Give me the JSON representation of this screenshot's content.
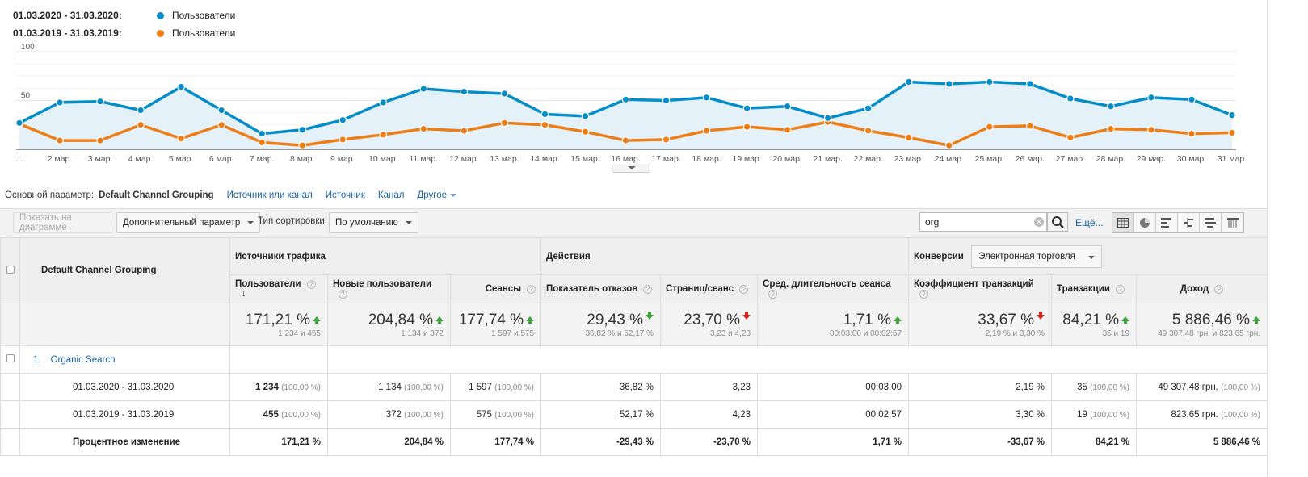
{
  "legend": [
    {
      "dates": "01.03.2020 - 31.03.2020:",
      "metric": "Пользователи",
      "color": "#058dc7"
    },
    {
      "dates": "01.03.2019 - 31.03.2019:",
      "metric": "Пользователи",
      "color": "#ed7e17"
    }
  ],
  "chart_data": {
    "type": "line",
    "x": [
      "...",
      "2 мар.",
      "3 мар.",
      "4 мар.",
      "5 мар.",
      "6 мар.",
      "7 мар.",
      "8 мар.",
      "9 мар.",
      "10 мар.",
      "11 мар.",
      "12 мар.",
      "13 мар.",
      "14 мар.",
      "15 мар.",
      "16 мар.",
      "17 мар.",
      "18 мар.",
      "19 мар.",
      "20 мар.",
      "21 мар.",
      "22 мар.",
      "23 мар.",
      "24 мар.",
      "25 мар.",
      "26 мар.",
      "27 мар.",
      "28 мар.",
      "29 мар.",
      "30 мар.",
      "31 мар."
    ],
    "y_ticks": [
      "100",
      "50"
    ],
    "ylim": [
      0,
      100
    ],
    "series": [
      {
        "name": "Пользователи",
        "color": "#058dc7",
        "values": [
          27,
          48,
          49,
          40,
          64,
          40,
          16,
          20,
          30,
          48,
          62,
          59,
          57,
          36,
          34,
          51,
          50,
          53,
          42,
          44,
          32,
          42,
          69,
          67,
          69,
          67,
          52,
          44,
          53,
          51,
          35
        ]
      },
      {
        "name": "Пользователи",
        "color": "#ed7e17",
        "values": [
          26,
          9,
          9,
          25,
          11,
          25,
          7,
          4,
          10,
          15,
          21,
          19,
          27,
          25,
          18,
          9,
          10,
          19,
          23,
          20,
          28,
          19,
          12,
          4,
          23,
          24,
          12,
          21,
          20,
          16,
          17
        ]
      }
    ]
  },
  "primary_dim": {
    "label": "Основной параметр:",
    "active": "Default Channel Grouping",
    "options": [
      "Источник или канал",
      "Источник",
      "Канал"
    ],
    "other": "Другое"
  },
  "toolbar": {
    "plot_button": "Показать на диаграмме",
    "secondary_dim": "Дополнительный параметр",
    "sort_label": "Тип сортировки:",
    "sort_value": "По умолчанию",
    "search_value": "org",
    "more": "Ещё..."
  },
  "table": {
    "dim_header": "Default Channel Grouping",
    "groups": [
      "Источники трафика",
      "Действия",
      "Конверсии"
    ],
    "conversion_select": "Электронная торговля",
    "columns": [
      "Пользователи",
      "Новые пользователи",
      "Сеансы",
      "Показатель отказов",
      "Страниц/сеанс",
      "Сред. длительность сеанса",
      "Коэффициент транзакций",
      "Транзакции",
      "Доход"
    ],
    "totals": [
      {
        "main": "171,21 %",
        "sub": "1 234 и 455"
      },
      {
        "main": "204,84 %",
        "sub": "1 134 и 372"
      },
      {
        "main": "177,74 %",
        "sub": "1 597 и 575"
      },
      {
        "main": "29,43 %",
        "sub": "36,82 % и 52,17 %"
      },
      {
        "main": "23,70 %",
        "sub": "3,23 и 4,23"
      },
      {
        "main": "1,71 %",
        "sub": "00:03:00 и 00:02:57"
      },
      {
        "main": "33,67 %",
        "sub": "2,19 % и 3,30 %"
      },
      {
        "main": "84,21 %",
        "sub": "35 и 19"
      },
      {
        "main": "5 886,46 %",
        "sub": "49 307,48 грн. и 823,65 грн."
      }
    ],
    "row_index": "1.",
    "row_label": "Organic Search",
    "period1": {
      "label": "01.03.2020 - 31.03.2020",
      "users": "1 234",
      "users_pct": "(100,00 %)",
      "new_users": "1 134",
      "new_pct": "(100,00 %)",
      "sessions": "1 597",
      "sessions_pct": "(100,00 %)",
      "bounce": "36,82 %",
      "pages": "3,23",
      "duration": "00:03:00",
      "conv_rate": "2,19 %",
      "transactions": "35",
      "trans_pct": "(100,00 %)",
      "revenue": "49 307,48 грн.",
      "revenue_pct": "(100,00 %)"
    },
    "period2": {
      "label": "01.03.2019 - 31.03.2019",
      "users": "455",
      "users_pct": "(100,00 %)",
      "new_users": "372",
      "new_pct": "(100,00 %)",
      "sessions": "575",
      "sessions_pct": "(100,00 %)",
      "bounce": "52,17 %",
      "pages": "4,23",
      "duration": "00:02:57",
      "conv_rate": "3,30 %",
      "transactions": "19",
      "trans_pct": "(100,00 %)",
      "revenue": "823,65 грн.",
      "revenue_pct": "(100,00 %)"
    },
    "change": {
      "label": "Процентное изменение",
      "users": "171,21 %",
      "new_users": "204,84 %",
      "sessions": "177,74 %",
      "bounce": "-29,43 %",
      "pages": "-23,70 %",
      "duration": "1,71 %",
      "conv_rate": "-33,67 %",
      "transactions": "84,21 %",
      "revenue": "5 886,46 %"
    }
  }
}
